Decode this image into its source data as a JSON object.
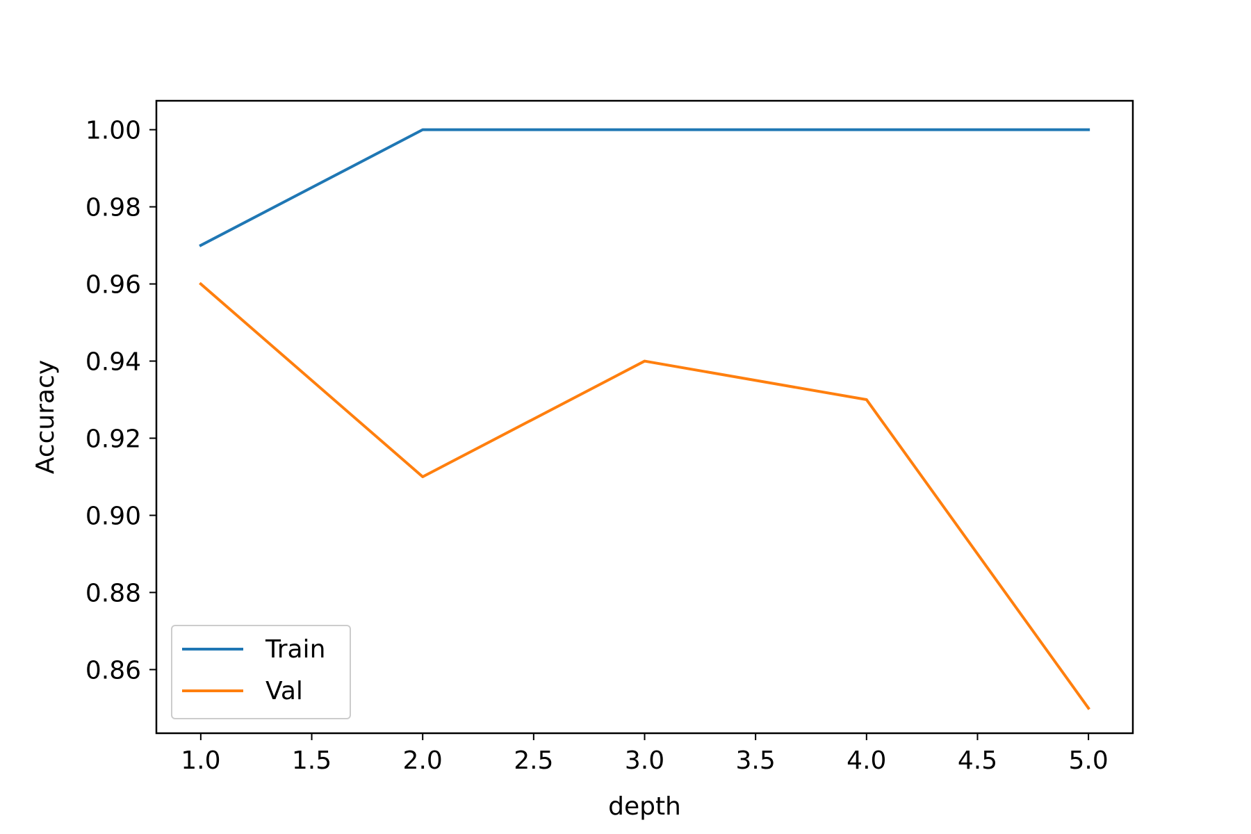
{
  "chart_data": {
    "type": "line",
    "xlabel": "depth",
    "ylabel": "Accuracy",
    "x": [
      1.0,
      2.0,
      3.0,
      4.0,
      5.0
    ],
    "series": [
      {
        "name": "Train",
        "color": "#1f77b4",
        "values": [
          0.97,
          1.0,
          1.0,
          1.0,
          1.0
        ]
      },
      {
        "name": "Val",
        "color": "#ff7f0e",
        "values": [
          0.96,
          0.91,
          0.94,
          0.93,
          0.85
        ]
      }
    ],
    "xlim": [
      0.8,
      5.2
    ],
    "ylim": [
      0.8435,
      1.0075
    ],
    "xticks": [
      1.0,
      1.5,
      2.0,
      2.5,
      3.0,
      3.5,
      4.0,
      4.5,
      5.0
    ],
    "xtick_labels": [
      "1.0",
      "1.5",
      "2.0",
      "2.5",
      "3.0",
      "3.5",
      "4.0",
      "4.5",
      "5.0"
    ],
    "yticks": [
      0.86,
      0.88,
      0.9,
      0.92,
      0.94,
      0.96,
      0.98,
      1.0
    ],
    "ytick_labels": [
      "0.86",
      "0.88",
      "0.90",
      "0.92",
      "0.94",
      "0.96",
      "0.98",
      "1.00"
    ],
    "grid": false,
    "legend_position": "lower-left"
  }
}
